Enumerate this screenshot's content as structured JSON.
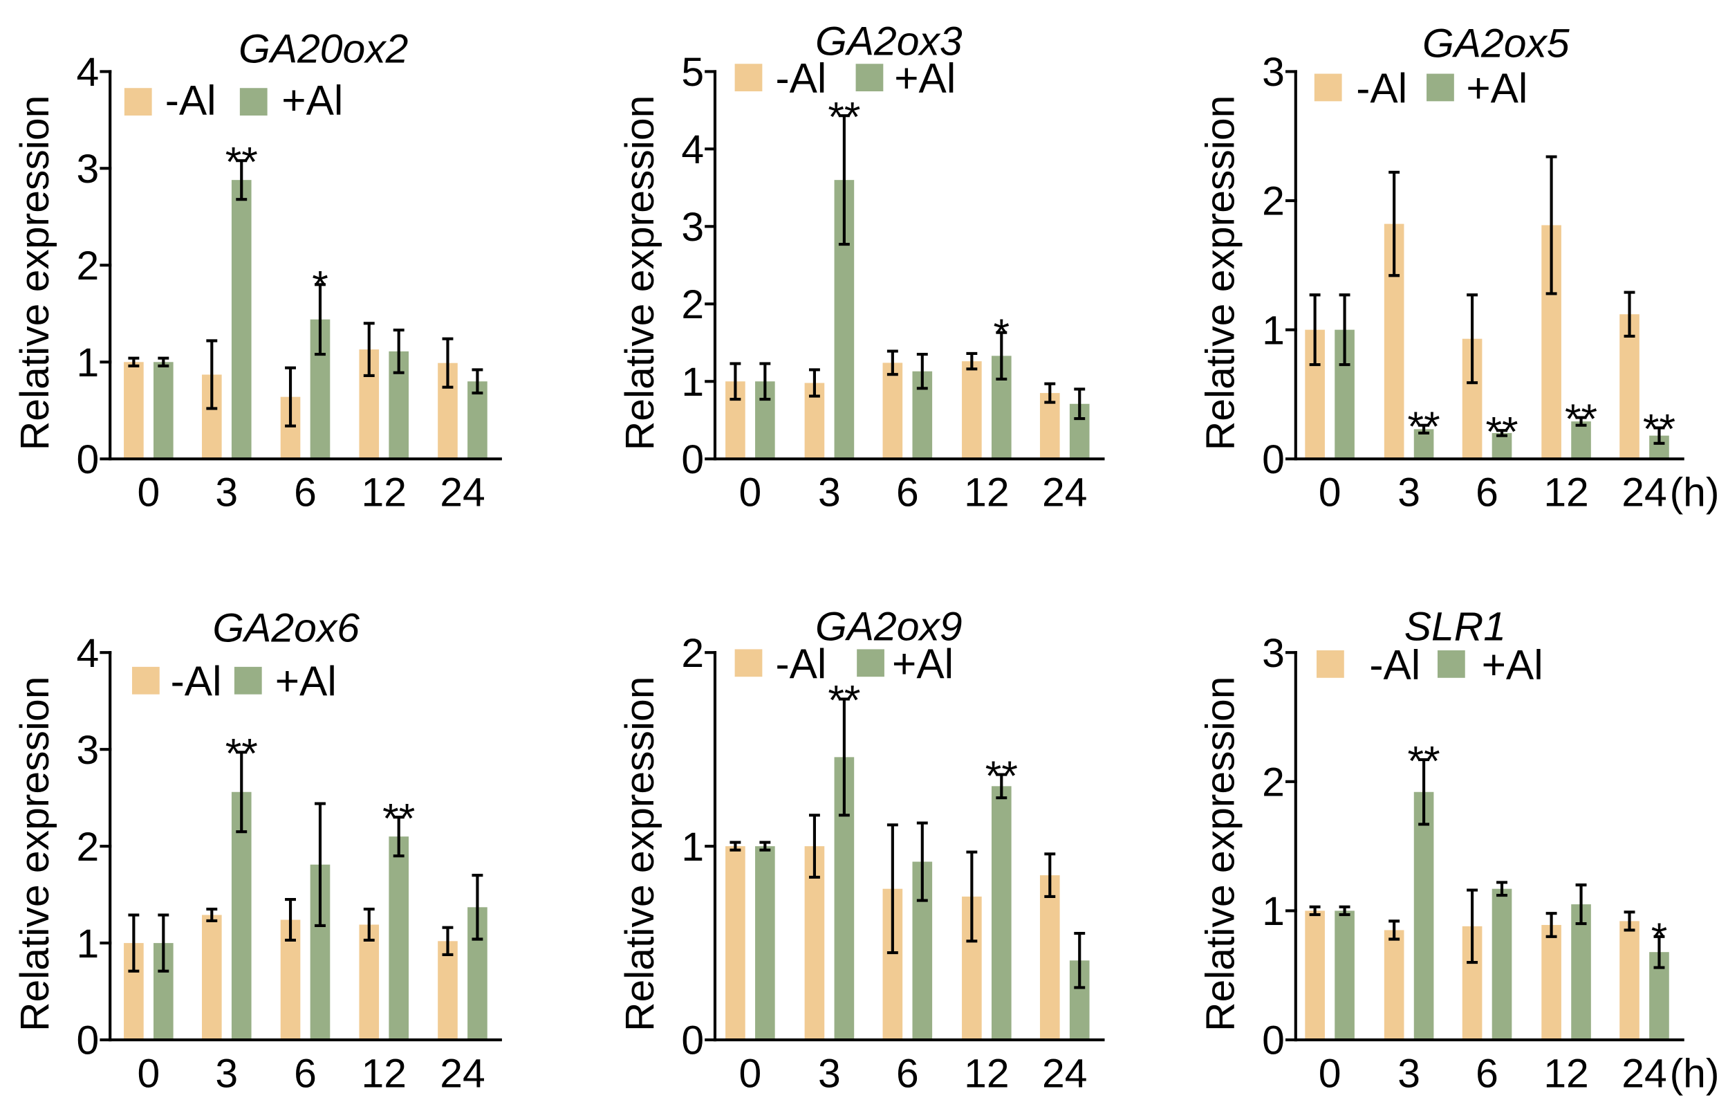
{
  "colors": {
    "minus_al": "#F1CB93",
    "plus_al": "#98AF86",
    "axis": "#000000"
  },
  "chart_data": [
    {
      "type": "bar",
      "title": "GA20ox2",
      "xlabel": "",
      "ylabel": "Relative expression",
      "categories": [
        "0",
        "3",
        "6",
        "12",
        "24"
      ],
      "ylim": [
        0,
        4
      ],
      "yticks": [
        0,
        1,
        2,
        3,
        4
      ],
      "legend": "top-left",
      "grid": false,
      "series": [
        {
          "name": "-Al",
          "color": "#F1CB93",
          "values": [
            1.0,
            0.87,
            0.64,
            1.13,
            0.99
          ],
          "errors": [
            0.04,
            0.35,
            0.3,
            0.27,
            0.25
          ]
        },
        {
          "name": "+Al",
          "color": "#98AF86",
          "values": [
            1.0,
            2.88,
            1.44,
            1.11,
            0.8
          ],
          "errors": [
            0.04,
            0.2,
            0.36,
            0.22,
            0.12
          ]
        }
      ],
      "significance": [
        "",
        "**",
        "*",
        "",
        ""
      ]
    },
    {
      "type": "bar",
      "title": "GA2ox3",
      "xlabel": "",
      "ylabel": "Relative expression",
      "categories": [
        "0",
        "3",
        "6",
        "12",
        "24"
      ],
      "ylim": [
        0,
        5
      ],
      "yticks": [
        0,
        1,
        2,
        3,
        4,
        5
      ],
      "legend": "top-left",
      "grid": false,
      "series": [
        {
          "name": "-Al",
          "color": "#F1CB93",
          "values": [
            1.0,
            0.98,
            1.24,
            1.26,
            0.85
          ],
          "errors": [
            0.23,
            0.17,
            0.15,
            0.1,
            0.12
          ]
        },
        {
          "name": "+Al",
          "color": "#98AF86",
          "values": [
            1.0,
            3.6,
            1.13,
            1.33,
            0.71
          ],
          "errors": [
            0.23,
            0.83,
            0.22,
            0.3,
            0.19
          ]
        }
      ],
      "significance": [
        "",
        "**",
        "",
        "*",
        ""
      ]
    },
    {
      "type": "bar",
      "title": "GA2ox5",
      "xlabel": "",
      "ylabel": "Relative expression",
      "categories": [
        "0",
        "3",
        "6",
        "12",
        "24"
      ],
      "x_unit": "(h)",
      "ylim": [
        0,
        3
      ],
      "yticks": [
        0,
        1,
        2,
        3
      ],
      "legend": "top-left",
      "grid": false,
      "series": [
        {
          "name": "-Al",
          "color": "#F1CB93",
          "values": [
            1.0,
            1.82,
            0.93,
            1.81,
            1.12
          ],
          "errors": [
            0.27,
            0.4,
            0.34,
            0.53,
            0.17
          ]
        },
        {
          "name": "+Al",
          "color": "#98AF86",
          "values": [
            1.0,
            0.23,
            0.2,
            0.29,
            0.18
          ],
          "errors": [
            0.27,
            0.03,
            0.02,
            0.03,
            0.06
          ]
        }
      ],
      "significance": [
        "",
        "**",
        "**",
        "**",
        "**"
      ]
    },
    {
      "type": "bar",
      "title": "GA2ox6",
      "xlabel": "",
      "ylabel": "Relative expression",
      "categories": [
        "0",
        "3",
        "6",
        "12",
        "24"
      ],
      "ylim": [
        0,
        4
      ],
      "yticks": [
        0,
        1,
        2,
        3,
        4
      ],
      "legend": "top-left",
      "grid": false,
      "series": [
        {
          "name": "-Al",
          "color": "#F1CB93",
          "values": [
            1.0,
            1.29,
            1.24,
            1.19,
            1.02
          ],
          "errors": [
            0.29,
            0.06,
            0.21,
            0.16,
            0.14
          ]
        },
        {
          "name": "+Al",
          "color": "#98AF86",
          "values": [
            1.0,
            2.56,
            1.81,
            2.1,
            1.37
          ],
          "errors": [
            0.29,
            0.41,
            0.63,
            0.2,
            0.33
          ]
        }
      ],
      "significance": [
        "",
        "**",
        "",
        "**",
        ""
      ]
    },
    {
      "type": "bar",
      "title": "GA2ox9",
      "xlabel": "",
      "ylabel": "Relative expression",
      "categories": [
        "0",
        "3",
        "6",
        "12",
        "24"
      ],
      "ylim": [
        0,
        2
      ],
      "yticks": [
        0,
        1,
        2
      ],
      "legend": "top-left",
      "grid": false,
      "series": [
        {
          "name": "-Al",
          "color": "#F1CB93",
          "values": [
            1.0,
            1.0,
            0.78,
            0.74,
            0.85
          ],
          "errors": [
            0.02,
            0.16,
            0.33,
            0.23,
            0.11
          ]
        },
        {
          "name": "+Al",
          "color": "#98AF86",
          "values": [
            1.0,
            1.46,
            0.92,
            1.31,
            0.41
          ],
          "errors": [
            0.02,
            0.3,
            0.2,
            0.06,
            0.14
          ]
        }
      ],
      "significance": [
        "",
        "**",
        "",
        "**",
        ""
      ]
    },
    {
      "type": "bar",
      "title": "SLR1",
      "xlabel": "",
      "ylabel": "Relative expression",
      "categories": [
        "0",
        "3",
        "6",
        "12",
        "24"
      ],
      "x_unit": "(h)",
      "ylim": [
        0,
        3
      ],
      "yticks": [
        0,
        1,
        2,
        3
      ],
      "legend": "top-left",
      "grid": false,
      "series": [
        {
          "name": "-Al",
          "color": "#F1CB93",
          "values": [
            1.0,
            0.85,
            0.88,
            0.89,
            0.92
          ],
          "errors": [
            0.03,
            0.07,
            0.28,
            0.09,
            0.07
          ]
        },
        {
          "name": "+Al",
          "color": "#98AF86",
          "values": [
            1.0,
            1.92,
            1.17,
            1.05,
            0.68
          ],
          "errors": [
            0.03,
            0.25,
            0.05,
            0.15,
            0.12
          ]
        }
      ],
      "significance": [
        "",
        "**",
        "",
        "",
        "*"
      ]
    }
  ]
}
